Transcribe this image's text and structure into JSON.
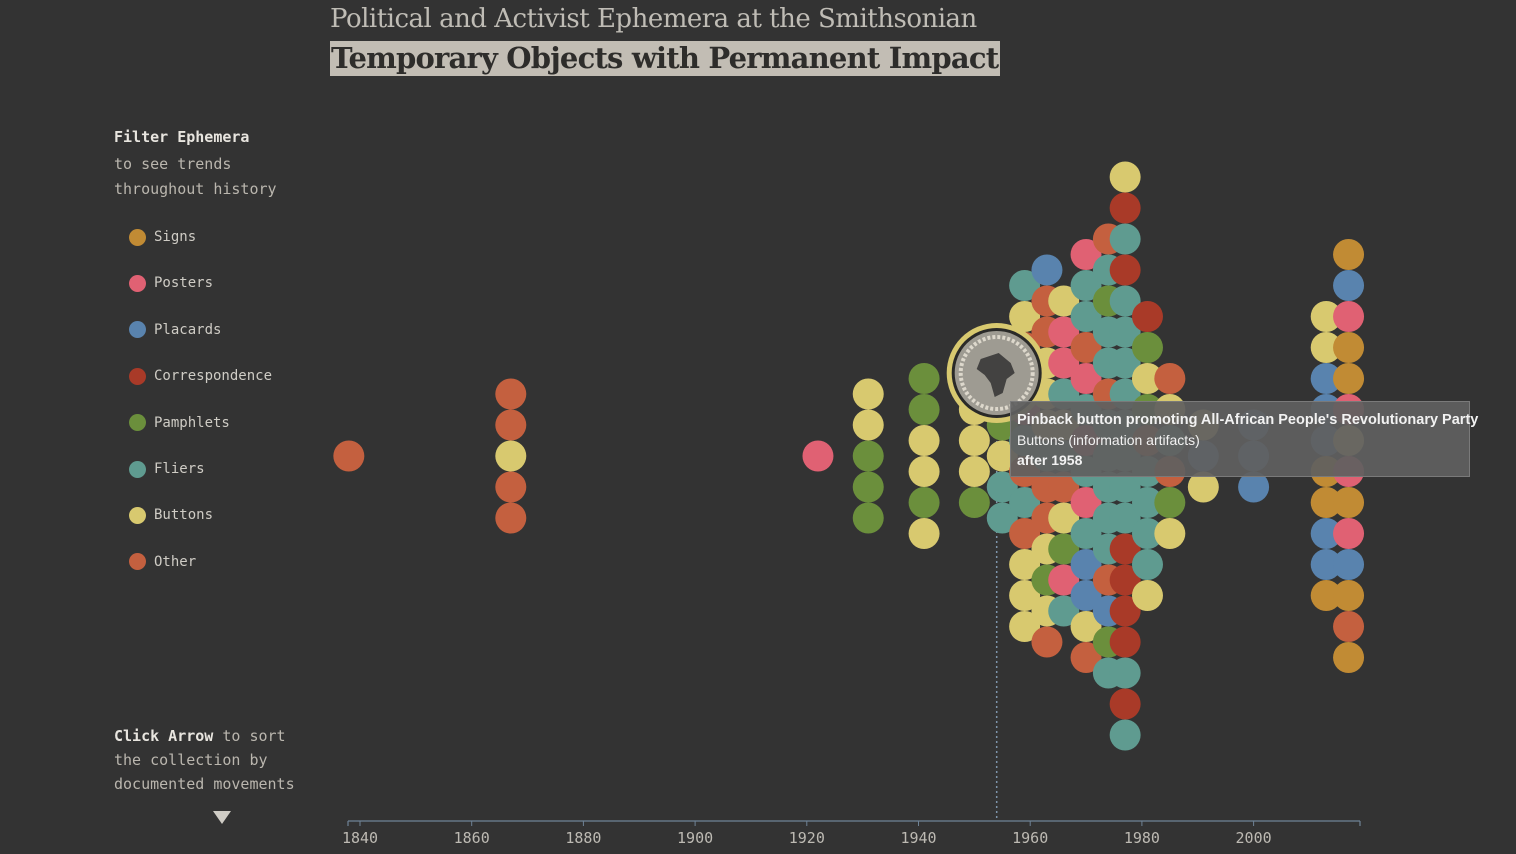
{
  "header": {
    "title_top": "Political and Activist Ephemera at the Smithsonian",
    "title_main": "Temporary Objects with Permanent Impact"
  },
  "sidebar": {
    "filter_title": "Filter Ephemera",
    "filter_subtitle": "to see trends throughout history",
    "categories": [
      {
        "label": "Signs",
        "color": "#c18b34"
      },
      {
        "label": "Posters",
        "color": "#e06173"
      },
      {
        "label": "Placards",
        "color": "#5983ae"
      },
      {
        "label": "Correspondence",
        "color": "#a93a28"
      },
      {
        "label": "Pamphlets",
        "color": "#6b8f3c"
      },
      {
        "label": "Fliers",
        "color": "#5f9b90"
      },
      {
        "label": "Buttons",
        "color": "#d8c96f"
      },
      {
        "label": "Other",
        "color": "#c4603f"
      }
    ],
    "sort_bold": "Click Arrow",
    "sort_text": "to sort the collection by documented movements",
    "sort_arrow_icon": "down-triangle-icon"
  },
  "chart_data": {
    "type": "scatter",
    "x_ticks": [
      "1840",
      "1860",
      "1880",
      "1900",
      "1920",
      "1940",
      "1960",
      "1980",
      "2000"
    ],
    "xlim": [
      1838,
      2021
    ],
    "yhint": "beeswarm; vertical offsets only stack points, no y axis",
    "columns": [
      {
        "year": 1838,
        "cats": [
          "Other"
        ]
      },
      {
        "year": 1867,
        "cats": [
          "Other",
          "Other",
          "Buttons",
          "Other",
          "Other"
        ]
      },
      {
        "year": 1922,
        "cats": [
          "Posters"
        ]
      },
      {
        "year": 1931,
        "cats": [
          "Buttons",
          "Buttons",
          "Pamphlets",
          "Pamphlets",
          "Pamphlets"
        ]
      },
      {
        "year": 1941,
        "cats": [
          "Pamphlets",
          "Pamphlets",
          "Buttons",
          "Buttons",
          "Pamphlets",
          "Buttons"
        ]
      },
      {
        "year": 1950,
        "cats": [
          "Buttons",
          "Buttons",
          "Buttons",
          "Pamphlets"
        ]
      },
      {
        "year": 1955,
        "cats": [
          "Buttons",
          "Pamphlets",
          "Buttons",
          "Fliers",
          "Fliers"
        ]
      },
      {
        "year": 1959,
        "cats": [
          "Fliers",
          "Buttons",
          "Other",
          "Fliers",
          "Posters",
          "Fliers",
          "Other",
          "Fliers",
          "Other",
          "Buttons",
          "Buttons",
          "Buttons"
        ]
      },
      {
        "year": 1963,
        "cats": [
          "Placards",
          "Other",
          "Other",
          "Buttons",
          "Buttons",
          "Buttons",
          "Fliers",
          "Other",
          "Other",
          "Buttons",
          "Pamphlets",
          "Buttons",
          "Other"
        ]
      },
      {
        "year": 1966,
        "cats": [
          "Buttons",
          "Posters",
          "Posters",
          "Fliers",
          "Buttons",
          "Fliers",
          "Other",
          "Buttons",
          "Pamphlets",
          "Posters",
          "Fliers"
        ]
      },
      {
        "year": 1970,
        "cats": [
          "Posters",
          "Fliers",
          "Fliers",
          "Other",
          "Posters",
          "Fliers",
          "Posters",
          "Fliers",
          "Posters",
          "Fliers",
          "Placards",
          "Placards",
          "Buttons",
          "Other"
        ]
      },
      {
        "year": 1974,
        "cats": [
          "Other",
          "Fliers",
          "Pamphlets",
          "Fliers",
          "Fliers",
          "Other",
          "Fliers",
          "Fliers",
          "Fliers",
          "Fliers",
          "Fliers",
          "Other",
          "Placards",
          "Pamphlets",
          "Fliers"
        ]
      },
      {
        "year": 1977,
        "cats": [
          "Buttons",
          "Correspondence",
          "Fliers",
          "Correspondence",
          "Fliers",
          "Fliers",
          "Fliers",
          "Fliers",
          "Fliers",
          "Fliers",
          "Fliers",
          "Fliers",
          "Correspondence",
          "Correspondence",
          "Correspondence",
          "Correspondence",
          "Fliers",
          "Correspondence",
          "Fliers"
        ]
      },
      {
        "year": 1981,
        "cats": [
          "Correspondence",
          "Pamphlets",
          "Buttons",
          "Pamphlets",
          "Other",
          "Fliers",
          "Fliers",
          "Fliers",
          "Fliers",
          "Buttons"
        ]
      },
      {
        "year": 1985,
        "cats": [
          "Other",
          "Buttons",
          "Fliers",
          "Other",
          "Pamphlets",
          "Buttons"
        ]
      },
      {
        "year": 1991,
        "cats": [
          "Buttons",
          "Placards",
          "Buttons"
        ]
      },
      {
        "year": 2000,
        "cats": [
          "Placards",
          "Placards",
          "Placards"
        ]
      },
      {
        "year": 2013,
        "cats": [
          "Buttons",
          "Buttons",
          "Placards",
          "Placards",
          "Placards",
          "Signs",
          "Signs",
          "Placards",
          "Placards",
          "Signs"
        ]
      },
      {
        "year": 2017,
        "cats": [
          "Signs",
          "Placards",
          "Posters",
          "Signs",
          "Signs",
          "Posters",
          "Buttons",
          "Posters",
          "Signs",
          "Posters",
          "Placards",
          "Signs",
          "Other",
          "Signs"
        ]
      }
    ],
    "highlight": {
      "year": 1954,
      "category": "Buttons",
      "icon": "africa-pinback-button-icon"
    }
  },
  "tooltip": {
    "title": "Pinback button promoting All-African People's Revolutionary Party",
    "type": "Buttons (information artifacts)",
    "date": "after 1958"
  }
}
